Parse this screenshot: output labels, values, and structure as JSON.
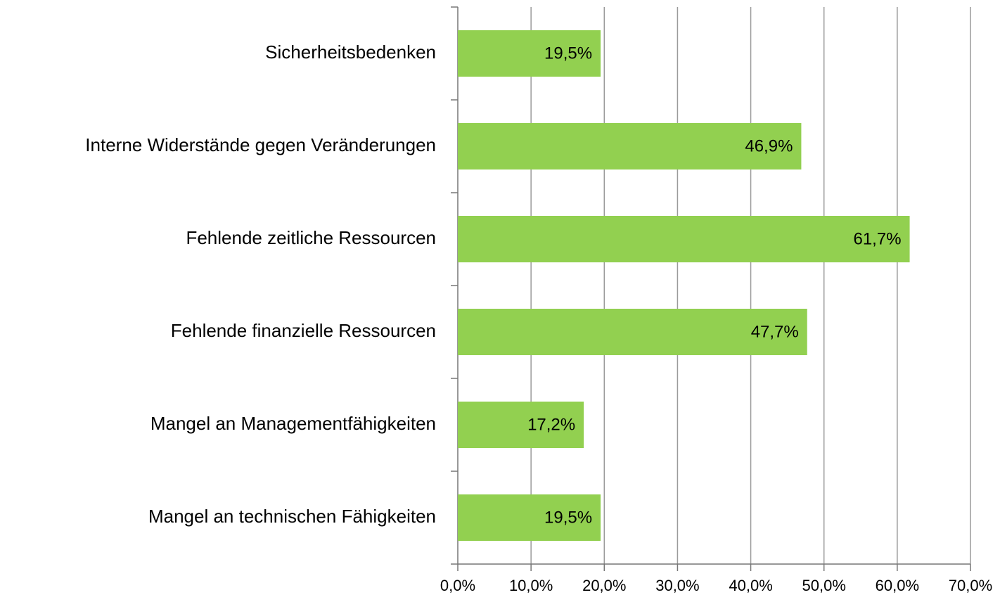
{
  "chart_data": {
    "type": "barh",
    "categories": [
      "Sicherheitsbedenken",
      "Interne Widerstände gegen Veränderungen",
      "Fehlende zeitliche Ressourcen",
      "Fehlende finanzielle Ressourcen",
      "Mangel an Managementfähigkeiten",
      "Mangel an technischen Fähigkeiten"
    ],
    "values": [
      19.5,
      46.9,
      61.7,
      47.7,
      17.2,
      19.5
    ],
    "value_labels": [
      "19,5%",
      "46,9%",
      "61,7%",
      "47,7%",
      "17,2%",
      "19,5%"
    ],
    "color": "#92d050",
    "xlim": [
      0,
      70
    ],
    "xticks": [
      {
        "value": 0,
        "label": "0,0%"
      },
      {
        "value": 10,
        "label": "10,0%"
      },
      {
        "value": 20,
        "label": "20,0%"
      },
      {
        "value": 30,
        "label": "30,0%"
      },
      {
        "value": 40,
        "label": "40,0%"
      },
      {
        "value": 50,
        "label": "50,0%"
      },
      {
        "value": 60,
        "label": "60,0%"
      },
      {
        "value": 70,
        "label": "70,0%"
      }
    ],
    "grid": true
  }
}
